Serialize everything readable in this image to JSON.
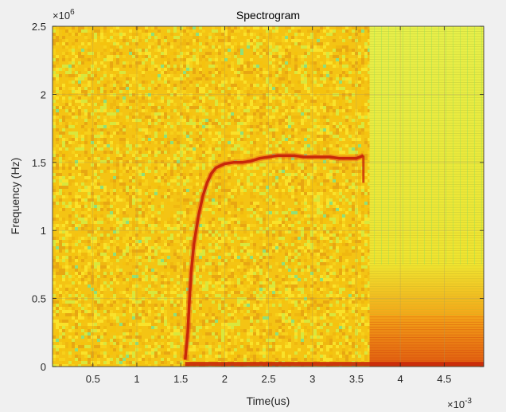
{
  "chart_data": {
    "type": "heatmap",
    "title": "Spectrogram",
    "xlabel": "Time(us)",
    "ylabel": "Frequency (Hz)",
    "x_exponent_label": "×10",
    "x_exponent_power": "-3",
    "y_exponent_label": "×10",
    "y_exponent_power": "6",
    "xlim": [
      0.04,
      4.95
    ],
    "ylim": [
      0,
      2.5
    ],
    "x_ticks": [
      0.5,
      1,
      1.5,
      2,
      2.5,
      3,
      3.5,
      4,
      4.5
    ],
    "x_tick_labels": [
      "0.5",
      "1",
      "1.5",
      "2",
      "2.5",
      "3",
      "3.5",
      "4",
      "4.5"
    ],
    "y_ticks": [
      0,
      0.5,
      1,
      1.5,
      2,
      2.5
    ],
    "y_tick_labels": [
      "0",
      "0.5",
      "1",
      "1.5",
      "2",
      "2.5"
    ],
    "grid": true,
    "colormap": "autumn-like (red-orange-yellow-green)",
    "background_colors": [
      "#f5c30e",
      "#f7d11a",
      "#f9e22a",
      "#f0b810",
      "#e8a712",
      "#d9e73c"
    ],
    "signal_color": "#c8280a",
    "signal_ridge": {
      "x": [
        1.55,
        1.58,
        1.6,
        1.62,
        1.65,
        1.7,
        1.75,
        1.8,
        1.85,
        1.9,
        2.0,
        2.1,
        2.2,
        2.3,
        2.4,
        2.5,
        2.6,
        2.7,
        2.8,
        2.9,
        3.0,
        3.1,
        3.2,
        3.3,
        3.4,
        3.5,
        3.58
      ],
      "y": [
        0.05,
        0.25,
        0.5,
        0.7,
        0.9,
        1.1,
        1.25,
        1.35,
        1.42,
        1.46,
        1.49,
        1.5,
        1.5,
        1.51,
        1.53,
        1.54,
        1.55,
        1.55,
        1.55,
        1.54,
        1.54,
        1.54,
        1.54,
        1.53,
        1.53,
        1.53,
        1.55
      ]
    },
    "signal_floor": {
      "x_start": 1.55,
      "x_end": 4.95,
      "y": 0.02
    },
    "striped_region": {
      "x_start": 3.65,
      "x_end": 4.95
    }
  }
}
